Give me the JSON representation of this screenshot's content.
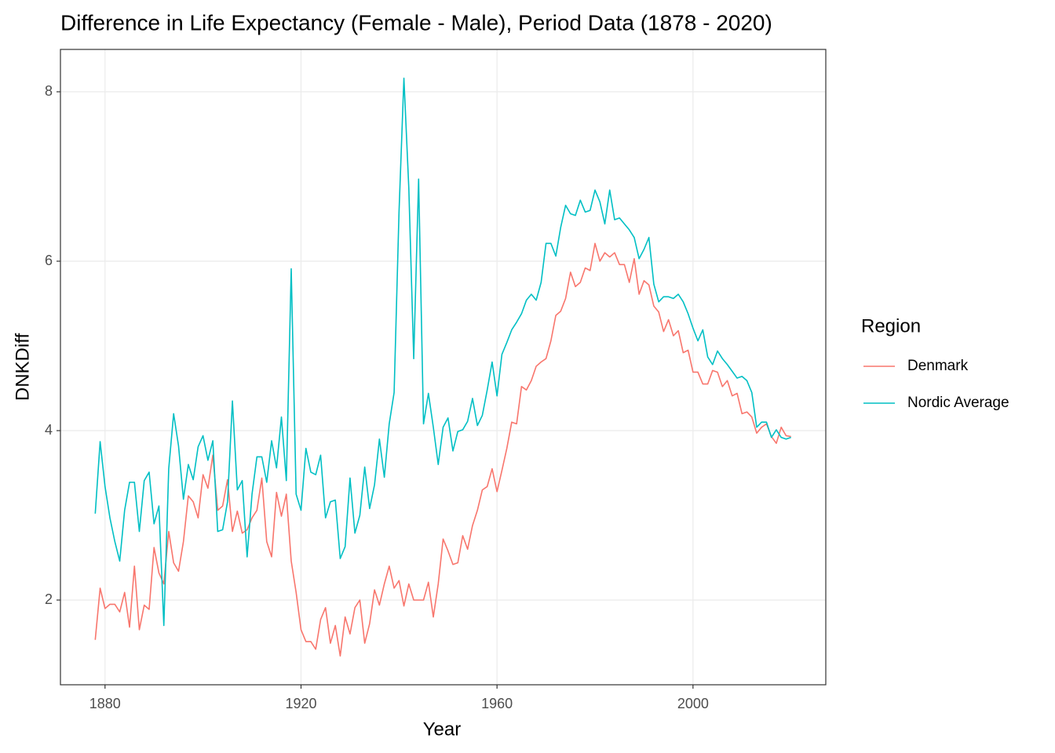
{
  "chart_data": {
    "type": "line",
    "title": "Difference in Life Expectancy (Female - Male), Period Data (1878 - 2020)",
    "x_label": "Year",
    "y_label": "DNKDiff",
    "legend_title": "Region",
    "legend_position": "right",
    "grid": true,
    "xlim": [
      1870.9,
      2027.1
    ],
    "ylim": [
      1.0,
      8.5
    ],
    "xticks": [
      1880,
      1920,
      1960,
      2000
    ],
    "yticks": [
      2,
      4,
      6,
      8
    ],
    "x": [
      1878,
      1879,
      1880,
      1881,
      1882,
      1883,
      1884,
      1885,
      1886,
      1887,
      1888,
      1889,
      1890,
      1891,
      1892,
      1893,
      1894,
      1895,
      1896,
      1897,
      1898,
      1899,
      1900,
      1901,
      1902,
      1903,
      1904,
      1905,
      1906,
      1907,
      1908,
      1909,
      1910,
      1911,
      1912,
      1913,
      1914,
      1915,
      1916,
      1917,
      1918,
      1919,
      1920,
      1921,
      1922,
      1923,
      1924,
      1925,
      1926,
      1927,
      1928,
      1929,
      1930,
      1931,
      1932,
      1933,
      1934,
      1935,
      1936,
      1937,
      1938,
      1939,
      1940,
      1941,
      1942,
      1943,
      1944,
      1945,
      1946,
      1947,
      1948,
      1949,
      1950,
      1951,
      1952,
      1953,
      1954,
      1955,
      1956,
      1957,
      1958,
      1959,
      1960,
      1961,
      1962,
      1963,
      1964,
      1965,
      1966,
      1967,
      1968,
      1969,
      1970,
      1971,
      1972,
      1973,
      1974,
      1975,
      1976,
      1977,
      1978,
      1979,
      1980,
      1981,
      1982,
      1983,
      1984,
      1985,
      1986,
      1987,
      1988,
      1989,
      1990,
      1991,
      1992,
      1993,
      1994,
      1995,
      1996,
      1997,
      1998,
      1999,
      2000,
      2001,
      2002,
      2003,
      2004,
      2005,
      2006,
      2007,
      2008,
      2009,
      2010,
      2011,
      2012,
      2013,
      2014,
      2015,
      2016,
      2017,
      2018,
      2019,
      2020
    ],
    "series": [
      {
        "name": "Denmark",
        "color": "#F8766D",
        "values": [
          1.53,
          2.14,
          1.9,
          1.95,
          1.95,
          1.86,
          2.09,
          1.68,
          2.4,
          1.65,
          1.94,
          1.89,
          2.62,
          2.32,
          2.19,
          2.81,
          2.44,
          2.34,
          2.69,
          3.23,
          3.16,
          2.97,
          3.48,
          3.32,
          3.71,
          3.06,
          3.11,
          3.42,
          2.81,
          3.05,
          2.79,
          2.83,
          2.97,
          3.06,
          3.44,
          2.69,
          2.51,
          3.27,
          2.99,
          3.25,
          2.46,
          2.09,
          1.65,
          1.51,
          1.51,
          1.42,
          1.77,
          1.91,
          1.49,
          1.7,
          1.34,
          1.8,
          1.6,
          1.91,
          2.0,
          1.49,
          1.72,
          2.12,
          1.94,
          2.19,
          2.4,
          2.14,
          2.23,
          1.93,
          2.19,
          2.0,
          2.0,
          2.0,
          2.21,
          1.8,
          2.19,
          2.72,
          2.58,
          2.42,
          2.44,
          2.76,
          2.6,
          2.88,
          3.06,
          3.3,
          3.34,
          3.55,
          3.28,
          3.53,
          3.79,
          4.1,
          4.08,
          4.52,
          4.48,
          4.59,
          4.76,
          4.81,
          4.85,
          5.06,
          5.36,
          5.41,
          5.56,
          5.87,
          5.7,
          5.75,
          5.92,
          5.89,
          6.21,
          6.0,
          6.1,
          6.05,
          6.1,
          5.96,
          5.96,
          5.75,
          6.03,
          5.61,
          5.77,
          5.72,
          5.47,
          5.4,
          5.17,
          5.31,
          5.12,
          5.18,
          4.92,
          4.95,
          4.69,
          4.69,
          4.55,
          4.55,
          4.71,
          4.69,
          4.52,
          4.59,
          4.41,
          4.44,
          4.2,
          4.22,
          4.16,
          3.97,
          4.04,
          4.08,
          3.93,
          3.85,
          4.04,
          3.94,
          3.93
        ]
      },
      {
        "name": "Nordic Average",
        "color": "#00BFC4",
        "values": [
          3.02,
          3.87,
          3.34,
          2.97,
          2.69,
          2.46,
          3.06,
          3.39,
          3.39,
          2.81,
          3.41,
          3.51,
          2.9,
          3.11,
          1.7,
          3.55,
          4.2,
          3.82,
          3.19,
          3.6,
          3.42,
          3.81,
          3.94,
          3.65,
          3.88,
          2.81,
          2.83,
          3.16,
          4.35,
          3.3,
          3.41,
          2.51,
          3.25,
          3.69,
          3.69,
          3.39,
          3.88,
          3.56,
          4.16,
          3.41,
          5.91,
          3.25,
          3.06,
          3.79,
          3.51,
          3.48,
          3.71,
          2.97,
          3.16,
          3.18,
          2.49,
          2.63,
          3.44,
          2.79,
          3.0,
          3.57,
          3.08,
          3.36,
          3.9,
          3.45,
          4.08,
          4.45,
          6.58,
          8.16,
          6.86,
          4.85,
          6.97,
          4.08,
          4.44,
          4.04,
          3.6,
          4.04,
          4.15,
          3.76,
          3.99,
          4.01,
          4.11,
          4.38,
          4.06,
          4.18,
          4.48,
          4.81,
          4.41,
          4.9,
          5.04,
          5.19,
          5.28,
          5.38,
          5.54,
          5.61,
          5.54,
          5.75,
          6.21,
          6.21,
          6.06,
          6.4,
          6.66,
          6.56,
          6.54,
          6.72,
          6.58,
          6.6,
          6.84,
          6.7,
          6.44,
          6.84,
          6.49,
          6.51,
          6.44,
          6.37,
          6.28,
          6.03,
          6.14,
          6.28,
          5.73,
          5.52,
          5.58,
          5.58,
          5.56,
          5.61,
          5.52,
          5.38,
          5.21,
          5.06,
          5.19,
          4.87,
          4.78,
          4.94,
          4.85,
          4.78,
          4.7,
          4.62,
          4.64,
          4.59,
          4.45,
          4.04,
          4.1,
          4.1,
          3.92,
          4.01,
          3.92,
          3.9,
          3.92
        ]
      }
    ]
  }
}
